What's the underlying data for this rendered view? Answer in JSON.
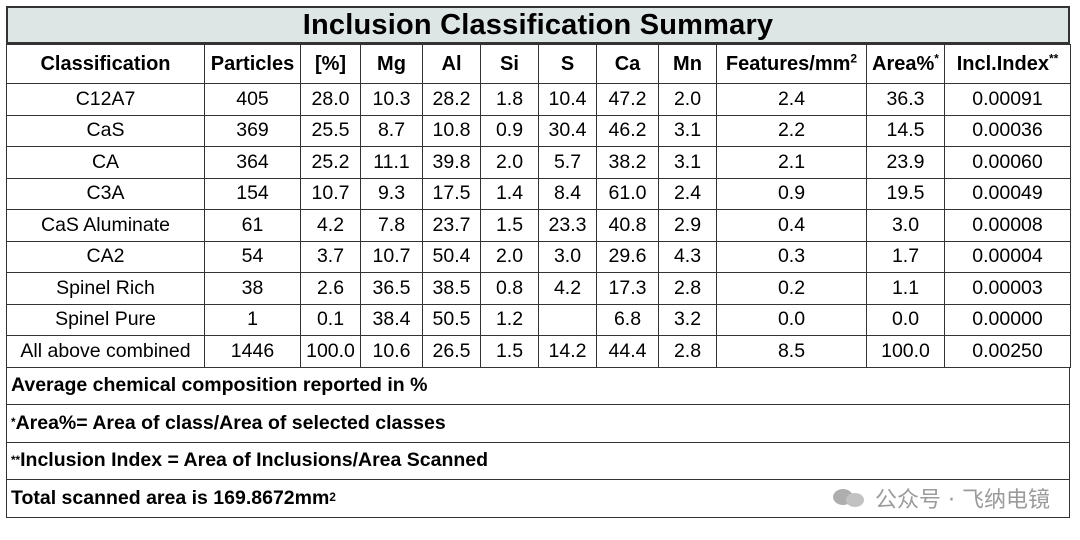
{
  "title": "Inclusion Classification Summary",
  "headers": {
    "classification": "Classification",
    "particles": "Particles",
    "pct": "[%]",
    "mg": "Mg",
    "al": "Al",
    "si": "Si",
    "s": "S",
    "ca": "Ca",
    "mn": "Mn",
    "features": "Features/mm",
    "features_sup": "2",
    "area": "Area%",
    "area_sup": "*",
    "index": "Incl.Index",
    "index_sup": "**"
  },
  "rows": [
    {
      "classification": "C12A7",
      "particles": "405",
      "pct": "28.0",
      "mg": "10.3",
      "al": "28.2",
      "si": "1.8",
      "s": "10.4",
      "ca": "47.2",
      "mn": "2.0",
      "features": "2.4",
      "area": "36.3",
      "index": "0.00091"
    },
    {
      "classification": "CaS",
      "particles": "369",
      "pct": "25.5",
      "mg": "8.7",
      "al": "10.8",
      "si": "0.9",
      "s": "30.4",
      "ca": "46.2",
      "mn": "3.1",
      "features": "2.2",
      "area": "14.5",
      "index": "0.00036"
    },
    {
      "classification": "CA",
      "particles": "364",
      "pct": "25.2",
      "mg": "11.1",
      "al": "39.8",
      "si": "2.0",
      "s": "5.7",
      "ca": "38.2",
      "mn": "3.1",
      "features": "2.1",
      "area": "23.9",
      "index": "0.00060"
    },
    {
      "classification": "C3A",
      "particles": "154",
      "pct": "10.7",
      "mg": "9.3",
      "al": "17.5",
      "si": "1.4",
      "s": "8.4",
      "ca": "61.0",
      "mn": "2.4",
      "features": "0.9",
      "area": "19.5",
      "index": "0.00049"
    },
    {
      "classification": "CaS Aluminate",
      "particles": "61",
      "pct": "4.2",
      "mg": "7.8",
      "al": "23.7",
      "si": "1.5",
      "s": "23.3",
      "ca": "40.8",
      "mn": "2.9",
      "features": "0.4",
      "area": "3.0",
      "index": "0.00008"
    },
    {
      "classification": "CA2",
      "particles": "54",
      "pct": "3.7",
      "mg": "10.7",
      "al": "50.4",
      "si": "2.0",
      "s": "3.0",
      "ca": "29.6",
      "mn": "4.3",
      "features": "0.3",
      "area": "1.7",
      "index": "0.00004"
    },
    {
      "classification": "Spinel Rich",
      "particles": "38",
      "pct": "2.6",
      "mg": "36.5",
      "al": "38.5",
      "si": "0.8",
      "s": "4.2",
      "ca": "17.3",
      "mn": "2.8",
      "features": "0.2",
      "area": "1.1",
      "index": "0.00003"
    },
    {
      "classification": "Spinel Pure",
      "particles": "1",
      "pct": "0.1",
      "mg": "38.4",
      "al": "50.5",
      "si": "1.2",
      "s": "",
      "ca": "6.8",
      "mn": "3.2",
      "features": "0.0",
      "area": "0.0",
      "index": "0.00000"
    },
    {
      "classification": "All above combined",
      "particles": "1446",
      "pct": "100.0",
      "mg": "10.6",
      "al": "26.5",
      "si": "1.5",
      "s": "14.2",
      "ca": "44.4",
      "mn": "2.8",
      "features": "8.5",
      "area": "100.0",
      "index": "0.00250"
    }
  ],
  "notes": {
    "composition": "Average chemical composition reported in %",
    "area_mark": "*",
    "area_def": "Area%= Area of class/Area of selected classes",
    "index_mark": "**",
    "index_def": "Inclusion Index = Area of Inclusions/Area Scanned",
    "total": "Total scanned area is 169.8672mm",
    "total_sup": "2"
  },
  "watermark": {
    "icon": "wechat-icon",
    "text": "公众号 · 飞纳电镜"
  }
}
